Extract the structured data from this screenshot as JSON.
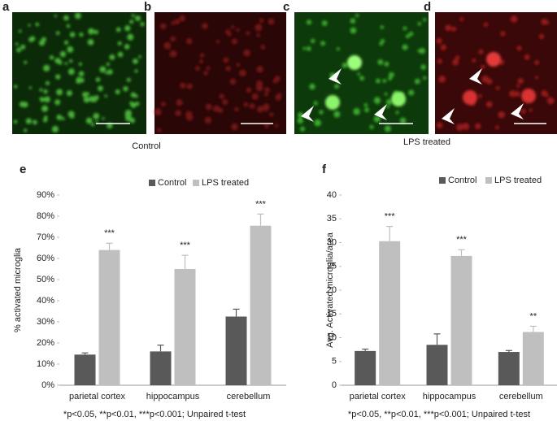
{
  "panel_labels": [
    "a",
    "b",
    "c",
    "d",
    "e",
    "f"
  ],
  "captions": [
    "Control",
    "LPS treated"
  ],
  "chart_data": [
    {
      "type": "bar",
      "ylabel": "% activated microglia",
      "categories": [
        "parietal cortex",
        "hippocampus",
        "cerebellum"
      ],
      "series": [
        {
          "name": "Control",
          "color": "#595959",
          "values": [
            14.5,
            16,
            32.5
          ],
          "errors": [
            0.8,
            3,
            3.5
          ],
          "significance": [
            null,
            null,
            null
          ]
        },
        {
          "name": "LPS treated",
          "color": "#bfbfbf",
          "values": [
            64,
            55,
            75.5
          ],
          "errors": [
            3.2,
            6.5,
            5.5
          ],
          "significance": [
            "***",
            "***",
            "***"
          ]
        }
      ],
      "ylim": [
        0,
        90
      ],
      "yticks": [
        {
          "value": 0,
          "label": "0%"
        },
        {
          "value": 10,
          "label": "10%"
        },
        {
          "value": 20,
          "label": "20%"
        },
        {
          "value": 30,
          "label": "30%"
        },
        {
          "value": 40,
          "label": "40%"
        },
        {
          "value": 50,
          "label": "50%"
        },
        {
          "value": 60,
          "label": "60%"
        },
        {
          "value": 70,
          "label": "70%"
        },
        {
          "value": 80,
          "label": "80%"
        },
        {
          "value": 90,
          "label": "90%"
        }
      ],
      "footnote": "*p<0.05, **p<0.01, ***p<0.001; Unpaired t-test"
    },
    {
      "type": "bar",
      "ylabel": "Avg. Activated microglia/area",
      "categories": [
        "parietal cortex",
        "hippocampus",
        "cerebellum"
      ],
      "series": [
        {
          "name": "Control",
          "color": "#595959",
          "values": [
            7.2,
            8.5,
            7
          ],
          "errors": [
            0.4,
            2.3,
            0.3
          ],
          "significance": [
            null,
            null,
            null
          ]
        },
        {
          "name": "LPS treated",
          "color": "#bfbfbf",
          "values": [
            30.3,
            27.2,
            11.2
          ],
          "errors": [
            3.1,
            1.3,
            1.2
          ],
          "significance": [
            "***",
            "***",
            "**"
          ]
        }
      ],
      "ylim": [
        0,
        40
      ],
      "yticks": [
        0,
        5,
        10,
        15,
        20,
        25,
        30,
        35,
        40
      ],
      "footnote": "*p<0.05, **p<0.01, ***p<0.001; Unpaired t-test"
    }
  ]
}
